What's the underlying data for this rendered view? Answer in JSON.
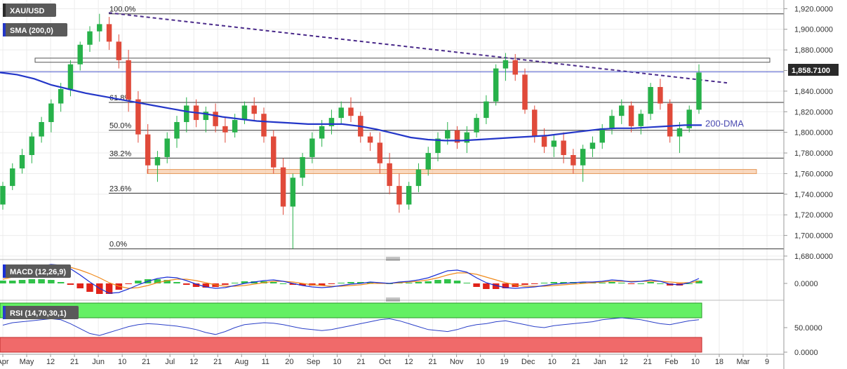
{
  "header": {
    "symbol": "XAU/USD",
    "sma_label": "SMA (200,0)",
    "macd_label": "MACD (12,26,9)",
    "rsi_label": "RSI (14,70,30,1)"
  },
  "annotations": {
    "dma_label": "200-DMA",
    "last_price_tag": "1,858.7100"
  },
  "colors": {
    "up": "#27b14a",
    "down": "#e04a3a",
    "sma": "#2336c8",
    "trendline": "#4a2a8a",
    "support_zone": "#f4b98a",
    "resistance_box": "#555555",
    "macd_line": "#1a2fd6",
    "signal_line": "#f08a1c",
    "hist_pos": "#31c24a",
    "hist_neg": "#e0231a",
    "rsi_line": "#2a3fc8",
    "rsi_overbought": "#64f064",
    "rsi_oversold": "#f06a6a",
    "badge_bg": "#5a5a5a"
  },
  "chart_data": {
    "type": "candlestick",
    "title": "XAU/USD",
    "ylim": [
      1680,
      1925
    ],
    "y_ticks": [
      "1,920.0000",
      "1,900.0000",
      "1,880.0000",
      "1,860.0000",
      "1,840.0000",
      "1,820.0000",
      "1,800.0000",
      "1,780.0000",
      "1,760.0000",
      "1,740.0000",
      "1,720.0000",
      "1,700.0000",
      "1,680.0000"
    ],
    "x_ticks": [
      "Apr",
      "May",
      "12",
      "21",
      "Jun",
      "10",
      "21",
      "Jul",
      "12",
      "21",
      "Aug",
      "11",
      "20",
      "Sep",
      "10",
      "21",
      "Oct",
      "12",
      "21",
      "Nov",
      "10",
      "19",
      "Dec",
      "10",
      "21",
      "Jan",
      "12",
      "21",
      "Feb",
      "10",
      "18",
      "Mar",
      "9"
    ],
    "fibonacci": [
      {
        "label": "100.0%",
        "value": 1915
      },
      {
        "label": "61.8%",
        "value": 1829
      },
      {
        "label": "50.0%",
        "value": 1802
      },
      {
        "label": "38.2%",
        "value": 1775
      },
      {
        "label": "23.6%",
        "value": 1741
      },
      {
        "label": "0.0%",
        "value": 1687
      }
    ],
    "last_price": 1858.71,
    "resistance_zone": [
      1868,
      1872
    ],
    "support_zone": [
      1760,
      1764
    ],
    "trendline": {
      "start_value": 1916,
      "end_value": 1848
    },
    "sma200": [
      1858,
      1856,
      1852,
      1846,
      1842,
      1838,
      1835,
      1832,
      1829,
      1826,
      1823,
      1820,
      1818,
      1815,
      1813,
      1811,
      1810,
      1809,
      1808,
      1808,
      1808,
      1806,
      1803,
      1799,
      1795,
      1793,
      1792,
      1792,
      1793,
      1794,
      1795,
      1796,
      1797,
      1799,
      1801,
      1803,
      1804,
      1804,
      1805,
      1806,
      1807,
      1807
    ],
    "ohlc": [
      [
        1730,
        1752,
        1725,
        1748
      ],
      [
        1748,
        1770,
        1744,
        1765
      ],
      [
        1765,
        1784,
        1760,
        1778
      ],
      [
        1778,
        1800,
        1770,
        1796
      ],
      [
        1796,
        1815,
        1790,
        1810
      ],
      [
        1810,
        1832,
        1800,
        1828
      ],
      [
        1828,
        1848,
        1820,
        1842
      ],
      [
        1842,
        1870,
        1835,
        1866
      ],
      [
        1866,
        1888,
        1860,
        1885
      ],
      [
        1885,
        1903,
        1878,
        1898
      ],
      [
        1898,
        1915,
        1888,
        1905
      ],
      [
        1905,
        1912,
        1880,
        1888
      ],
      [
        1888,
        1895,
        1862,
        1870
      ],
      [
        1870,
        1880,
        1820,
        1832
      ],
      [
        1832,
        1840,
        1790,
        1798
      ],
      [
        1798,
        1808,
        1760,
        1768
      ],
      [
        1768,
        1782,
        1752,
        1776
      ],
      [
        1776,
        1800,
        1770,
        1794
      ],
      [
        1794,
        1816,
        1785,
        1810
      ],
      [
        1810,
        1834,
        1800,
        1826
      ],
      [
        1826,
        1832,
        1805,
        1812
      ],
      [
        1812,
        1825,
        1800,
        1820
      ],
      [
        1820,
        1828,
        1800,
        1806
      ],
      [
        1806,
        1815,
        1790,
        1800
      ],
      [
        1800,
        1818,
        1795,
        1812
      ],
      [
        1812,
        1830,
        1808,
        1826
      ],
      [
        1826,
        1834,
        1812,
        1818
      ],
      [
        1818,
        1824,
        1790,
        1796
      ],
      [
        1796,
        1802,
        1760,
        1766
      ],
      [
        1766,
        1775,
        1720,
        1728
      ],
      [
        1728,
        1760,
        1687,
        1756
      ],
      [
        1756,
        1780,
        1748,
        1776
      ],
      [
        1776,
        1800,
        1770,
        1794
      ],
      [
        1794,
        1812,
        1786,
        1806
      ],
      [
        1806,
        1822,
        1798,
        1814
      ],
      [
        1814,
        1830,
        1808,
        1824
      ],
      [
        1824,
        1834,
        1810,
        1816
      ],
      [
        1816,
        1820,
        1790,
        1796
      ],
      [
        1796,
        1800,
        1782,
        1790
      ],
      [
        1790,
        1800,
        1760,
        1770
      ],
      [
        1770,
        1780,
        1740,
        1748
      ],
      [
        1748,
        1760,
        1722,
        1730
      ],
      [
        1730,
        1752,
        1725,
        1748
      ],
      [
        1748,
        1770,
        1742,
        1764
      ],
      [
        1764,
        1786,
        1758,
        1780
      ],
      [
        1780,
        1800,
        1772,
        1794
      ],
      [
        1794,
        1810,
        1788,
        1802
      ],
      [
        1802,
        1806,
        1784,
        1790
      ],
      [
        1790,
        1806,
        1780,
        1800
      ],
      [
        1800,
        1818,
        1795,
        1814
      ],
      [
        1814,
        1836,
        1808,
        1830
      ],
      [
        1830,
        1866,
        1826,
        1862
      ],
      [
        1862,
        1877,
        1850,
        1870
      ],
      [
        1870,
        1876,
        1850,
        1856
      ],
      [
        1856,
        1862,
        1818,
        1822
      ],
      [
        1822,
        1826,
        1790,
        1796
      ],
      [
        1796,
        1804,
        1780,
        1786
      ],
      [
        1786,
        1798,
        1776,
        1792
      ],
      [
        1792,
        1800,
        1770,
        1778
      ],
      [
        1778,
        1784,
        1760,
        1768
      ],
      [
        1768,
        1788,
        1752,
        1784
      ],
      [
        1784,
        1796,
        1776,
        1790
      ],
      [
        1790,
        1808,
        1784,
        1804
      ],
      [
        1804,
        1822,
        1798,
        1816
      ],
      [
        1816,
        1832,
        1808,
        1826
      ],
      [
        1826,
        1830,
        1800,
        1806
      ],
      [
        1806,
        1822,
        1798,
        1818
      ],
      [
        1818,
        1848,
        1812,
        1844
      ],
      [
        1844,
        1852,
        1822,
        1828
      ],
      [
        1828,
        1832,
        1790,
        1796
      ],
      [
        1796,
        1810,
        1780,
        1804
      ],
      [
        1804,
        1826,
        1800,
        1822
      ],
      [
        1822,
        1866,
        1818,
        1858
      ]
    ],
    "macd": {
      "macd_line": [
        10,
        13,
        17,
        21,
        25,
        27,
        26,
        21,
        12,
        2,
        -7,
        -14,
        -13,
        -8,
        -2,
        3,
        7,
        9,
        8,
        4,
        -1,
        -5,
        -7,
        -6,
        -3,
        0,
        2,
        4,
        5,
        3,
        0,
        -3,
        -5,
        -6,
        -5,
        -3,
        -1,
        0,
        2,
        1,
        0,
        2,
        3,
        5,
        8,
        13,
        18,
        19,
        16,
        8,
        1,
        -3,
        -6,
        -7,
        -6,
        -5,
        -3,
        -1,
        0,
        1,
        2,
        2,
        3,
        5,
        4,
        2,
        3,
        5,
        3,
        -1,
        -2,
        1,
        7
      ],
      "signal_line": [
        6,
        9,
        12,
        15,
        19,
        22,
        24,
        23,
        19,
        14,
        8,
        1,
        -4,
        -7,
        -6,
        -3,
        1,
        4,
        6,
        6,
        4,
        1,
        -2,
        -4,
        -4,
        -3,
        -1,
        1,
        3,
        3,
        2,
        0,
        -2,
        -3,
        -4,
        -4,
        -3,
        -2,
        0,
        0,
        0,
        1,
        2,
        3,
        5,
        8,
        12,
        15,
        15,
        13,
        9,
        5,
        1,
        -2,
        -4,
        -4,
        -4,
        -3,
        -2,
        -1,
        0,
        1,
        2,
        3,
        3,
        3,
        3,
        3,
        3,
        2,
        1,
        1,
        3
      ],
      "ylim": [
        -20,
        32
      ],
      "y_tick": "0.0000"
    },
    "rsi": {
      "values": [
        55,
        60,
        62,
        64,
        66,
        68,
        66,
        58,
        48,
        38,
        34,
        40,
        46,
        52,
        56,
        58,
        57,
        55,
        53,
        50,
        46,
        40,
        36,
        42,
        50,
        56,
        58,
        60,
        59,
        56,
        52,
        48,
        46,
        44,
        46,
        50,
        54,
        58,
        62,
        66,
        68,
        64,
        58,
        52,
        46,
        44,
        42,
        46,
        52,
        56,
        58,
        62,
        64,
        60,
        56,
        52,
        50,
        54,
        56,
        58,
        60,
        62,
        66,
        68,
        70,
        68,
        66,
        62,
        58,
        56,
        60,
        64,
        66
      ],
      "ylim": [
        0,
        100
      ],
      "overbought": 70,
      "oversold": 30,
      "y_ticks": [
        "50.0000",
        "0.0000"
      ]
    }
  }
}
